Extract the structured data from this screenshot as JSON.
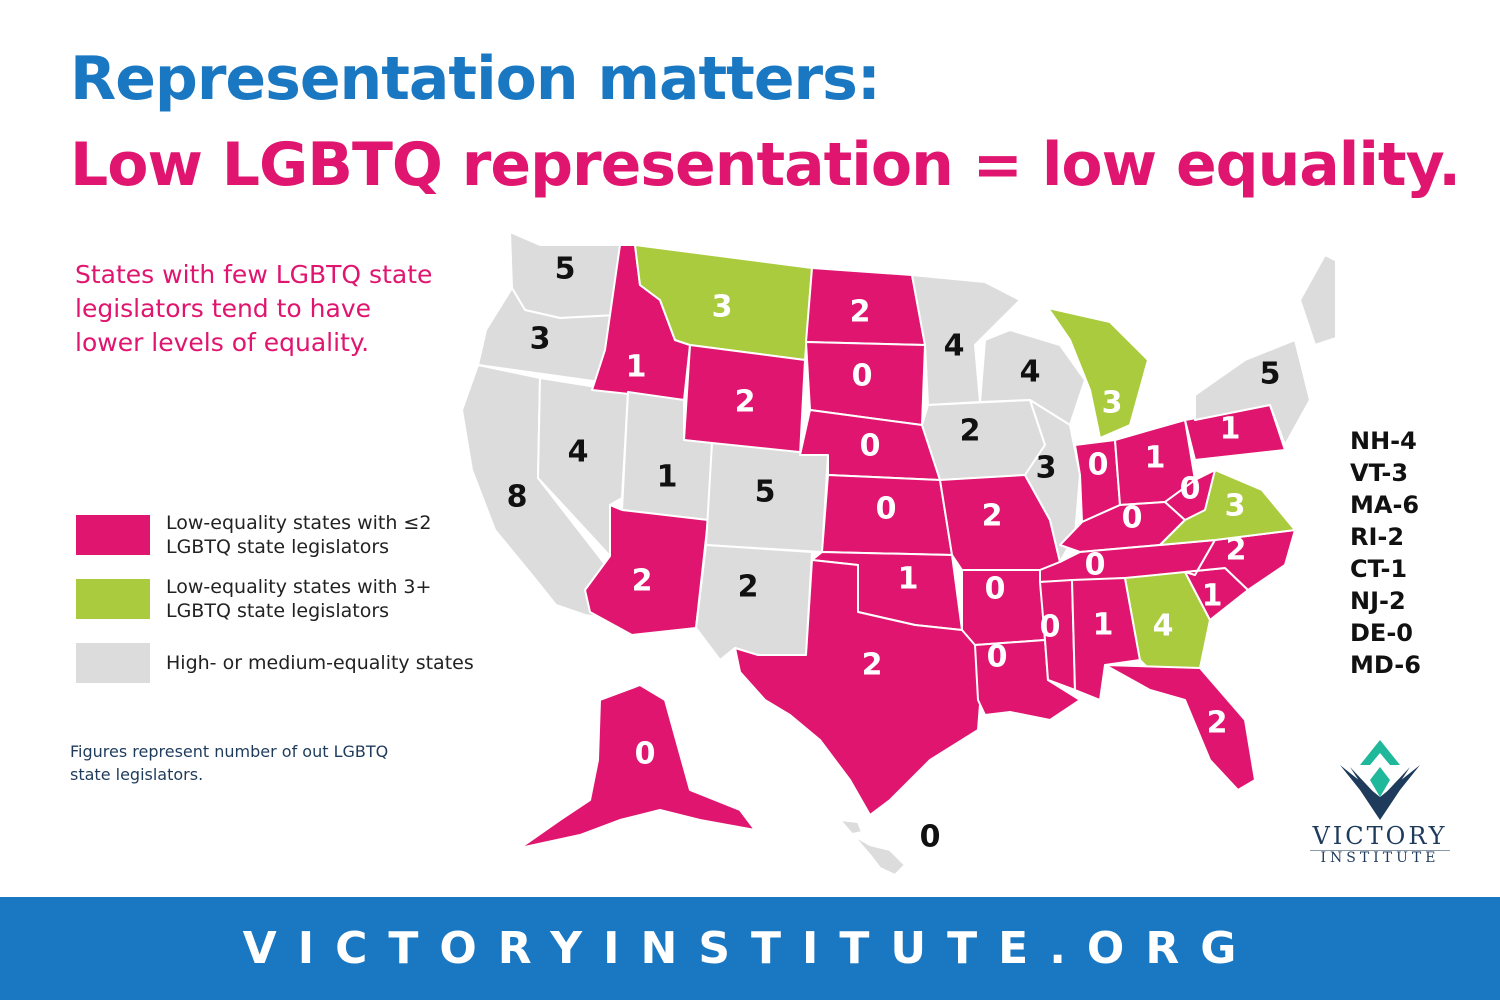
{
  "title": {
    "line1": "Representation matters:",
    "line2": "Low LGBTQ representation = low equality."
  },
  "intro": "States with few LGBTQ state legislators tend to have lower levels of equality.",
  "legend": [
    {
      "label": "Low-equality states with ≤2 LGBTQ state legislators",
      "color": "#e0156f"
    },
    {
      "label": "Low-equality states with 3+ LGBTQ state legislators",
      "color": "#a9cb3d"
    },
    {
      "label": "High- or medium-equality states",
      "color": "#dcdcdc"
    }
  ],
  "footnote": "Figures represent number of out LGBTQ state legislators.",
  "colors": {
    "low_few": "#e0156f",
    "low_many": "#a9cb3d",
    "high_medium": "#dcdcdc",
    "brand_blue": "#1a78c2"
  },
  "states": [
    {
      "abbr": "WA",
      "value": "5",
      "category": "high_medium"
    },
    {
      "abbr": "OR",
      "value": "3",
      "category": "high_medium"
    },
    {
      "abbr": "CA",
      "value": "8",
      "category": "high_medium"
    },
    {
      "abbr": "NV",
      "value": "4",
      "category": "high_medium"
    },
    {
      "abbr": "ID",
      "value": "1",
      "category": "low_few"
    },
    {
      "abbr": "MT",
      "value": "3",
      "category": "low_many"
    },
    {
      "abbr": "WY",
      "value": "2",
      "category": "low_few"
    },
    {
      "abbr": "UT",
      "value": "1",
      "category": "high_medium"
    },
    {
      "abbr": "AZ",
      "value": "2",
      "category": "low_few"
    },
    {
      "abbr": "CO",
      "value": "5",
      "category": "high_medium"
    },
    {
      "abbr": "NM",
      "value": "2",
      "category": "high_medium"
    },
    {
      "abbr": "ND",
      "value": "2",
      "category": "low_few"
    },
    {
      "abbr": "SD",
      "value": "0",
      "category": "low_few"
    },
    {
      "abbr": "NE",
      "value": "0",
      "category": "low_few"
    },
    {
      "abbr": "KS",
      "value": "0",
      "category": "low_few"
    },
    {
      "abbr": "OK",
      "value": "1",
      "category": "low_few"
    },
    {
      "abbr": "TX",
      "value": "2",
      "category": "low_few"
    },
    {
      "abbr": "MN",
      "value": "4",
      "category": "high_medium"
    },
    {
      "abbr": "IA",
      "value": "2",
      "category": "high_medium"
    },
    {
      "abbr": "MO",
      "value": "2",
      "category": "low_few"
    },
    {
      "abbr": "AR",
      "value": "0",
      "category": "low_few"
    },
    {
      "abbr": "LA",
      "value": "0",
      "category": "low_few"
    },
    {
      "abbr": "WI",
      "value": "4",
      "category": "high_medium"
    },
    {
      "abbr": "IL",
      "value": "3",
      "category": "high_medium"
    },
    {
      "abbr": "MI",
      "value": "3",
      "category": "low_many"
    },
    {
      "abbr": "IN",
      "value": "0",
      "category": "low_few"
    },
    {
      "abbr": "OH",
      "value": "1",
      "category": "low_few"
    },
    {
      "abbr": "KY",
      "value": "0",
      "category": "low_few"
    },
    {
      "abbr": "TN",
      "value": "0",
      "category": "low_few"
    },
    {
      "abbr": "MS",
      "value": "0",
      "category": "low_few"
    },
    {
      "abbr": "AL",
      "value": "1",
      "category": "low_few"
    },
    {
      "abbr": "GA",
      "value": "4",
      "category": "low_many"
    },
    {
      "abbr": "FL",
      "value": "2",
      "category": "low_few"
    },
    {
      "abbr": "SC",
      "value": "1",
      "category": "low_few"
    },
    {
      "abbr": "NC",
      "value": "2",
      "category": "low_few"
    },
    {
      "abbr": "VA",
      "value": "3",
      "category": "low_many"
    },
    {
      "abbr": "WV",
      "value": "0",
      "category": "low_few"
    },
    {
      "abbr": "PA",
      "value": "1",
      "category": "low_few"
    },
    {
      "abbr": "NY",
      "value": "5",
      "category": "high_medium"
    },
    {
      "abbr": "ME",
      "value": "5",
      "category": "high_medium"
    },
    {
      "abbr": "AK",
      "value": "0",
      "category": "low_few"
    },
    {
      "abbr": "HI",
      "value": "0",
      "category": "high_medium"
    }
  ],
  "northeast_list": [
    "NH-4",
    "VT-3",
    "MA-6",
    "RI-2",
    "CT-1",
    "NJ-2",
    "DE-0",
    "MD-6"
  ],
  "logo": {
    "name": "VICTORY",
    "subtitle": "INSTITUTE",
    "icon": "victory-chevron-logo-icon"
  },
  "footer": {
    "url": "VICTORYINSTITUTE.ORG"
  }
}
